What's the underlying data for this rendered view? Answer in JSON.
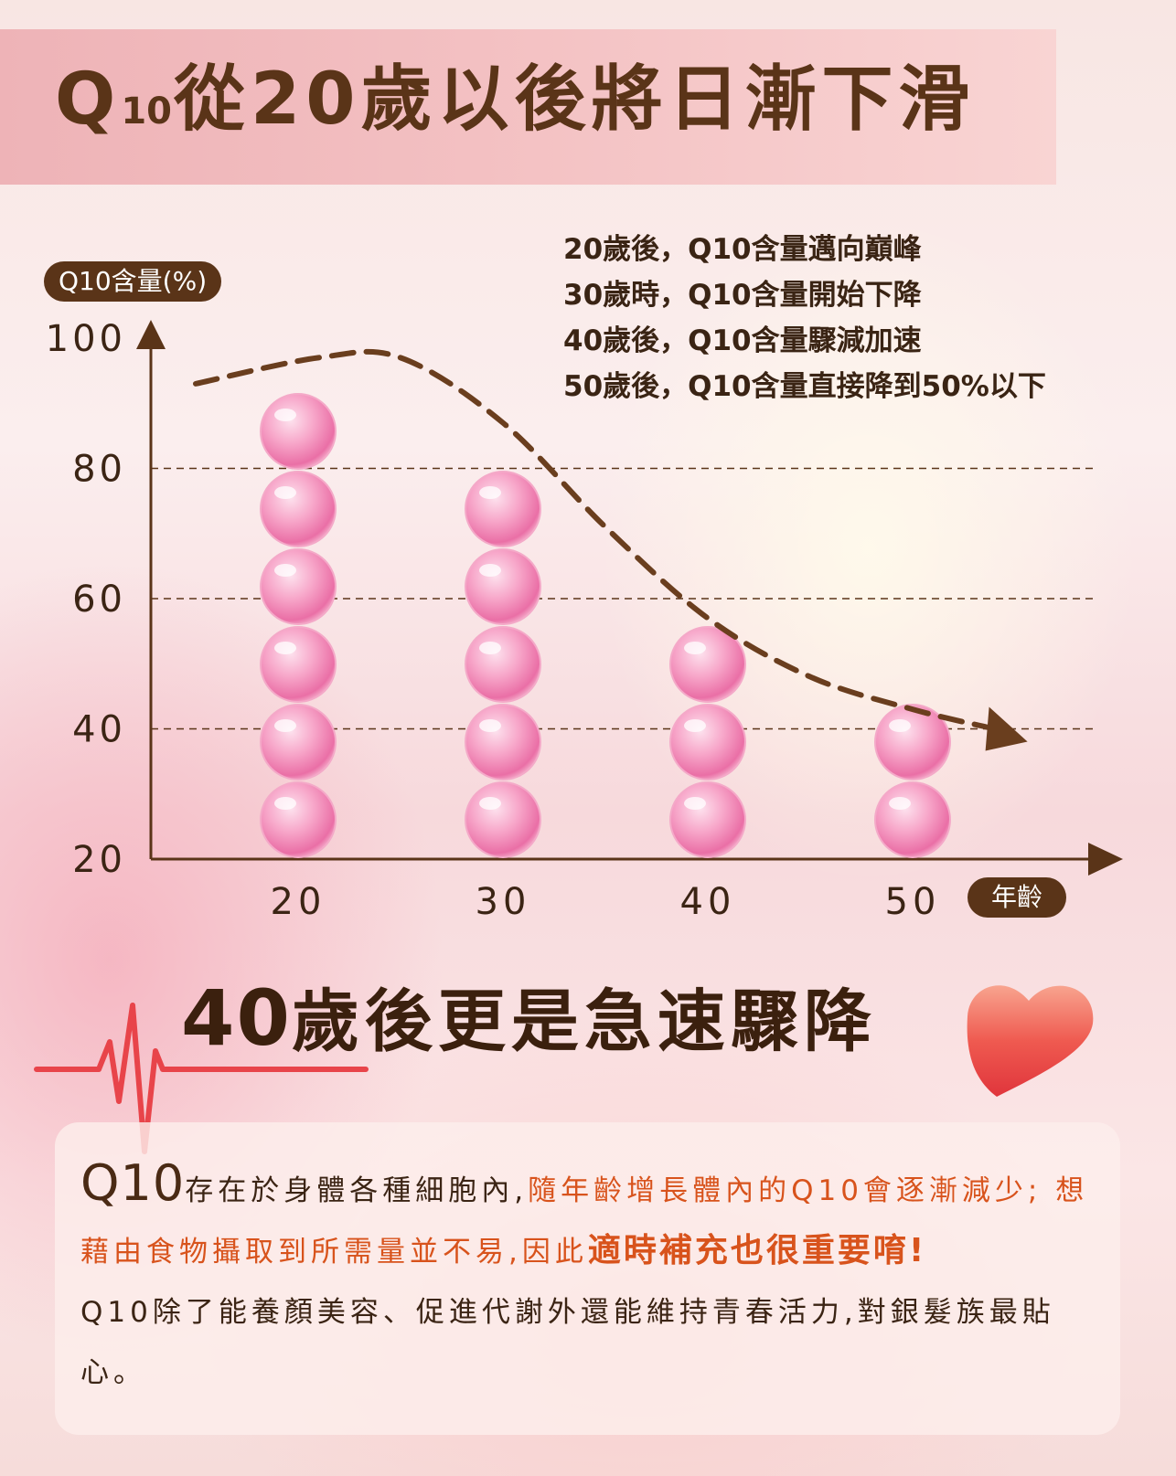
{
  "header": {
    "title_prefix": "Q",
    "title_sub": "10",
    "title_rest": "從20歲以後將日漸下滑"
  },
  "notes": [
    "20歲後，Q10含量邁向巔峰",
    "30歲時，Q10含量開始下降",
    "40歲後，Q10含量驟減加速",
    "50歲後，Q10含量直接降到50%以下"
  ],
  "chart_data": {
    "type": "bar",
    "ylabel": "Q10含量(%)",
    "xlabel": "年齡",
    "categories": [
      "20",
      "30",
      "40",
      "50"
    ],
    "values": [
      94,
      82,
      57,
      45
    ],
    "marker_counts": [
      6,
      5,
      3,
      2
    ],
    "y_ticks": [
      "100",
      "80",
      "60",
      "40",
      "20"
    ],
    "ylim": [
      20,
      100
    ],
    "grid": "dashed horizontal at 40, 60, 80",
    "trend_line": {
      "style": "dashed curve with arrow",
      "points": [
        [
          15,
          93
        ],
        [
          21,
          97
        ],
        [
          25,
          97
        ],
        [
          30,
          87
        ],
        [
          35,
          71
        ],
        [
          40,
          57
        ],
        [
          45,
          48
        ],
        [
          50,
          43
        ],
        [
          54,
          40
        ]
      ]
    },
    "colors": {
      "axis": "#5a3418",
      "marker": "#f07fb0",
      "trend": "#6a3e1e"
    }
  },
  "headline": {
    "num": "40",
    "text": "歲後更是急速驟降"
  },
  "paragraph": {
    "lead": "Q10",
    "s1": "存在於身體各種細胞內,",
    "s2": "隨年齡增長體內的Q10會逐漸減少; 想藉由食物攝取到所需量並不易,因此",
    "s3": "適時補充也很重要唷!",
    "s4": "Q10除了能養顏美容、促進代謝外還能維持青春活力,對銀髮族最貼心。"
  }
}
